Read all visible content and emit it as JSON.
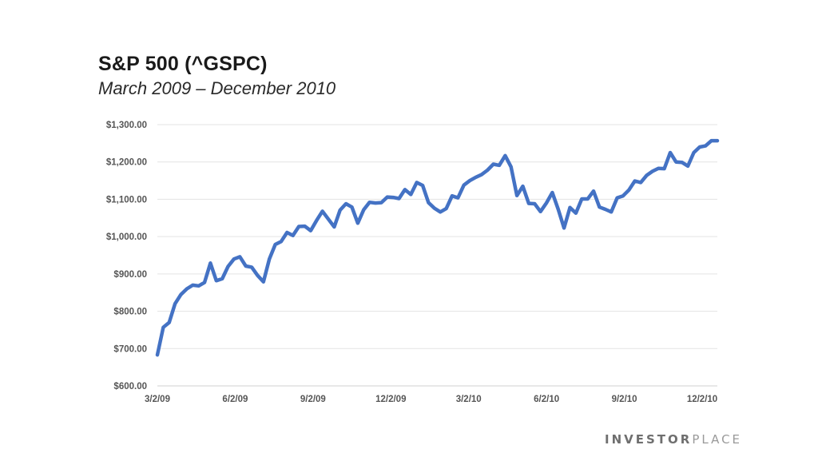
{
  "header": {
    "title": "S&P 500 (^GSPC)",
    "subtitle": "March 2009 – December 2010"
  },
  "brand": {
    "part1": "INVESTOR",
    "part2": "PLACE"
  },
  "colors": {
    "line": "#4472C4",
    "grid": "#e3e3e3",
    "axis_text": "#555555"
  },
  "chart_data": {
    "type": "line",
    "title": "S&P 500 (^GSPC)",
    "subtitle": "March 2009 – December 2010",
    "xlabel": "",
    "ylabel": "",
    "ylim": [
      600,
      1300
    ],
    "y_ticks": [
      600,
      700,
      800,
      900,
      1000,
      1100,
      1200,
      1300
    ],
    "y_tick_labels": [
      "$600.00",
      "$700.00",
      "$800.00",
      "$900.00",
      "$1,000.00",
      "$1,100.00",
      "$1,200.00",
      "$1,300.00"
    ],
    "x_tick_labels": [
      "3/2/09",
      "6/2/09",
      "9/2/09",
      "12/2/09",
      "3/2/10",
      "6/2/10",
      "9/2/10",
      "12/2/10"
    ],
    "grid": "horizontal",
    "legend": "none",
    "series": [
      {
        "values": [
          683,
          757,
          770,
          820,
          845,
          860,
          870,
          868,
          877,
          929,
          882,
          887,
          920,
          940,
          946,
          921,
          918,
          896,
          879,
          940,
          979,
          987,
          1011,
          1003,
          1027,
          1028,
          1016,
          1043,
          1068,
          1047,
          1026,
          1071,
          1088,
          1079,
          1036,
          1072,
          1092,
          1090,
          1091,
          1106,
          1105,
          1102,
          1126,
          1113,
          1145,
          1137,
          1091,
          1076,
          1066,
          1075,
          1109,
          1104,
          1138,
          1150,
          1159,
          1166,
          1178,
          1194,
          1191,
          1217,
          1187,
          1110,
          1135,
          1089,
          1088,
          1067,
          1090,
          1118,
          1073,
          1023,
          1078,
          1063,
          1101,
          1101,
          1122,
          1079,
          1073,
          1066,
          1104,
          1109,
          1125,
          1149,
          1145,
          1164,
          1175,
          1183,
          1182,
          1225,
          1200,
          1199,
          1189,
          1225,
          1240,
          1243,
          1257,
          1257
        ]
      }
    ]
  }
}
